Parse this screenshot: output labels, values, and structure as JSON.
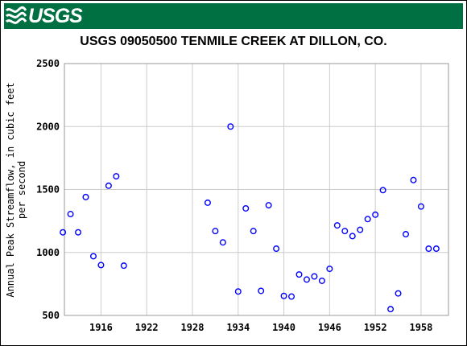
{
  "header": {
    "agency_logo_text": "USGS",
    "banner_color": "#006f41"
  },
  "chart_data": {
    "type": "scatter",
    "title": "USGS 09050500 TENMILE CREEK AT DILLON, CO.",
    "xlabel": "",
    "ylabel_line1": "Annual Peak Streamflow, in cubic feet",
    "ylabel_line2": "per second",
    "xlim": [
      1911.2,
      1961.6
    ],
    "ylim": [
      500,
      2500
    ],
    "x_ticks": [
      1916,
      1922,
      1928,
      1934,
      1940,
      1946,
      1952,
      1958
    ],
    "y_ticks": [
      500,
      1000,
      1500,
      2000,
      2500
    ],
    "grid": true,
    "marker": "open-circle",
    "marker_color": "#0000ff",
    "series": [
      {
        "points": [
          [
            1911,
            1160
          ],
          [
            1912,
            1305
          ],
          [
            1913,
            1160
          ],
          [
            1914,
            1440
          ],
          [
            1915,
            970
          ],
          [
            1916,
            900
          ],
          [
            1917,
            1530
          ],
          [
            1918,
            1605
          ],
          [
            1919,
            895
          ],
          [
            1930,
            1395
          ],
          [
            1931,
            1170
          ],
          [
            1932,
            1080
          ],
          [
            1933,
            2000
          ],
          [
            1934,
            690
          ],
          [
            1935,
            1350
          ],
          [
            1936,
            1170
          ],
          [
            1937,
            695
          ],
          [
            1938,
            1375
          ],
          [
            1939,
            1030
          ],
          [
            1940,
            655
          ],
          [
            1941,
            650
          ],
          [
            1942,
            825
          ],
          [
            1943,
            785
          ],
          [
            1944,
            810
          ],
          [
            1945,
            775
          ],
          [
            1946,
            870
          ],
          [
            1947,
            1215
          ],
          [
            1948,
            1170
          ],
          [
            1949,
            1130
          ],
          [
            1950,
            1180
          ],
          [
            1951,
            1265
          ],
          [
            1952,
            1300
          ],
          [
            1953,
            1495
          ],
          [
            1954,
            550
          ],
          [
            1955,
            675
          ],
          [
            1956,
            1145
          ],
          [
            1957,
            1575
          ],
          [
            1958,
            1365
          ],
          [
            1959,
            1030
          ],
          [
            1960,
            1030
          ]
        ]
      }
    ]
  }
}
